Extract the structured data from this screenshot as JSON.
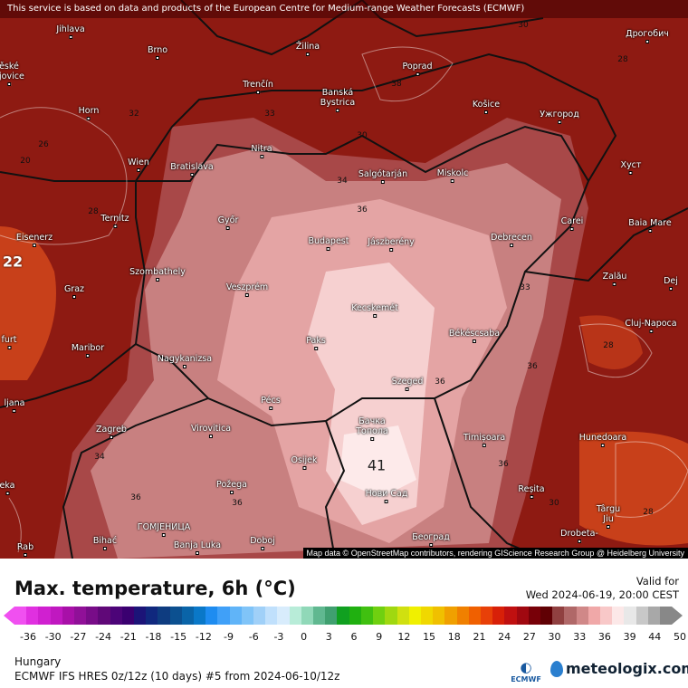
{
  "map": {
    "banner": "This service is based on data and products of the European Centre for Medium-range Weather Forecasts (ECMWF)",
    "attribution": "Map data © OpenStreetMap contributors, rendering GIScience Research Group @ Heidelberg University",
    "cities": [
      "Jihlava",
      "Brno",
      "Žilina",
      "Poprad",
      "Дрогобич",
      "ěské\nějovice",
      "Horn",
      "Trenčín",
      "Banská\nBystrica",
      "Košice",
      "Ужгород",
      "Wien",
      "Bratislava",
      "Nitra",
      "Salgótarján",
      "Miskolc",
      "Хуст",
      "Eisenerz",
      "Ternitz",
      "Győr",
      "Budapest",
      "Jászberény",
      "Debrecen",
      "Carei",
      "Baia Mare",
      "Graz",
      "Szombathely",
      "Veszprém",
      "Zalău",
      "Dej",
      "Kecskemét",
      "Cluj-Napoca",
      "Maribor",
      "Paks",
      "Békéscsaba",
      "furt",
      "Nagykanizsa",
      "Szeged",
      "ljana",
      "Pécs",
      "Zagreb",
      "Virovitica",
      "Бачка\nТопола",
      "Timișoara",
      "Hunedoara",
      "Osijek",
      "Požega",
      "Нови Сад",
      "Reșita",
      "Târgu\nJiu",
      "eka",
      "ГОМЈЕНИЦА",
      "Banja Luka",
      "Bihać",
      "Rab",
      "Doboj",
      "Београд",
      "Drobeta-"
    ],
    "isolines": [
      "30",
      "28",
      "32",
      "33",
      "30",
      "26",
      "20",
      "28",
      "34",
      "36",
      "33",
      "36",
      "36",
      "38",
      "36",
      "34",
      "36",
      "36",
      "28",
      "28",
      "30",
      "22",
      "41"
    ],
    "colors": {
      "outer": "#8e1a12",
      "mid": "#b85a5a",
      "inner": "#e8a0a0",
      "core": "#fbe4e4",
      "hot": "#e0521a"
    }
  },
  "legend": {
    "title": "Max. temperature, 6h (°C)",
    "valid_label": "Valid for",
    "valid_time": "Wed 2024-06-19, 20:00 CEST",
    "ticks": [
      "-36",
      "-30",
      "-27",
      "-24",
      "-21",
      "-18",
      "-15",
      "-12",
      "-9",
      "-6",
      "-3",
      "0",
      "3",
      "6",
      "9",
      "12",
      "15",
      "18",
      "21",
      "24",
      "27",
      "30",
      "33",
      "36",
      "39",
      "44",
      "50"
    ],
    "colors": [
      "#f050f0",
      "#e030e0",
      "#d020d0",
      "#c018c0",
      "#a810a8",
      "#901098",
      "#780c88",
      "#600878",
      "#4c0478",
      "#3a0070",
      "#1c1478",
      "#10287e",
      "#0e3c80",
      "#0c5090",
      "#0a64a8",
      "#0a78c8",
      "#1e8cf0",
      "#40a0f8",
      "#60b4f8",
      "#80c4f8",
      "#a0d0f8",
      "#c0e0fc",
      "#d8ecfc",
      "#b8ecd8",
      "#90d8b8",
      "#60b890",
      "#40a070",
      "#10a020",
      "#20b010",
      "#40c010",
      "#70d010",
      "#a0d810",
      "#d0e010",
      "#f0f000",
      "#f0d800",
      "#f0c000",
      "#f0a000",
      "#f08000",
      "#f06000",
      "#e84008",
      "#d82008",
      "#c01010",
      "#a00810",
      "#780008",
      "#600004",
      "#904040",
      "#b06868",
      "#d08888",
      "#f0a8a8",
      "#f8c8c8",
      "#fce8e8",
      "#e8e8e8",
      "#c8c8c8",
      "#a8a8a8",
      "#888888"
    ],
    "region": "Hungary",
    "model": "ECMWF IFS HRES 0z/12z (10 days) #5 from  2024-06-10/12z",
    "ecmwf_logo": "ECMWF",
    "brand": "meteologix.com"
  }
}
